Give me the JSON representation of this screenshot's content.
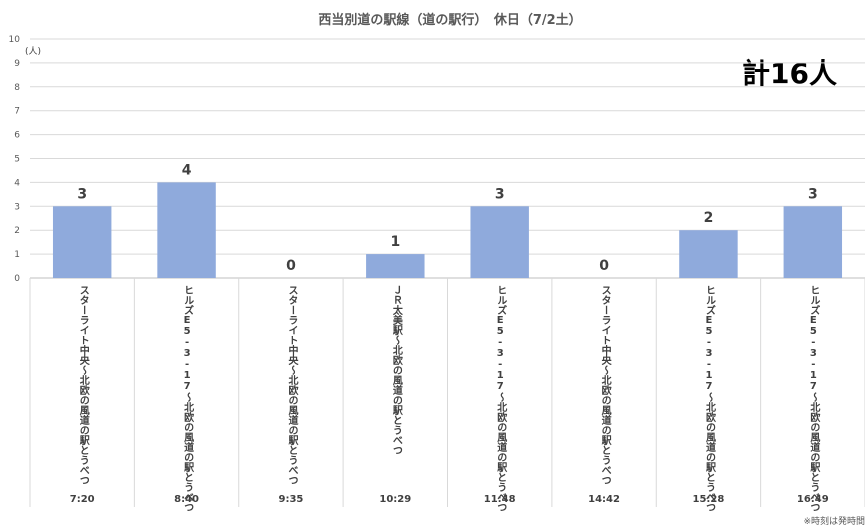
{
  "chart_data": {
    "type": "bar",
    "title": "西当別道の駅線（道の駅行）　休日（7/2土）",
    "unit_label": "(人)",
    "total_label": "計16人",
    "note": "※時刻は発時間",
    "ylim": [
      0,
      10
    ],
    "yticks": [
      0,
      1,
      2,
      3,
      4,
      5,
      6,
      7,
      8,
      9,
      10
    ],
    "grid": true,
    "bar_color": "#8faadc",
    "categories": [
      {
        "route": "スターライト中央～北欧の風道の駅とうべつ",
        "time": "7:20"
      },
      {
        "route": "ヒルズE5-3-17～北欧の風道の駅とうべつ",
        "time": "8:40"
      },
      {
        "route": "スターライト中央～北欧の風道の駅とうべつ",
        "time": "9:35"
      },
      {
        "route": "ＪＲ太美駅～北欧の風道の駅とうべつ",
        "time": "10:29"
      },
      {
        "route": "ヒルズE5-3-17～北欧の風道の駅とうべつ",
        "time": "11:48"
      },
      {
        "route": "スターライト中央～北欧の風道の駅とうべつ",
        "time": "14:42"
      },
      {
        "route": "ヒルズE5-3-17～北欧の風道の駅とうべつ",
        "time": "15:28"
      },
      {
        "route": "ヒルズE5-3-17～北欧の風道の駅とうべつ",
        "time": "16:49"
      }
    ],
    "values": [
      3,
      4,
      0,
      1,
      3,
      0,
      2,
      3
    ]
  }
}
